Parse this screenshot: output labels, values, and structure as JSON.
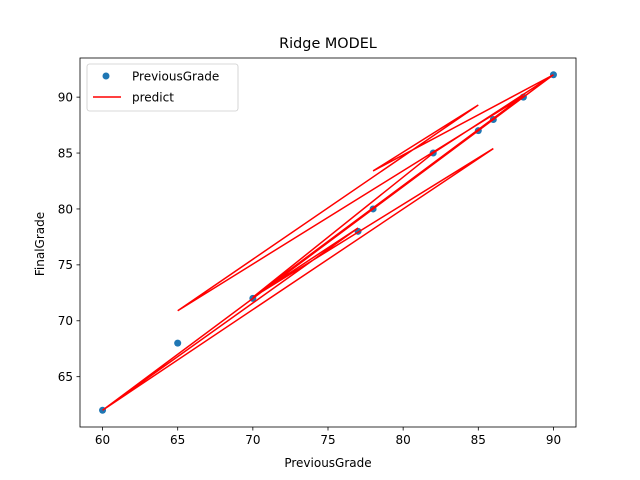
{
  "chart_data": {
    "type": "scatter",
    "title": "Ridge MODEL",
    "xlabel": "PreviousGrade",
    "ylabel": "FinalGrade",
    "xlim": [
      58.5,
      91.5
    ],
    "ylim": [
      60.5,
      93.5
    ],
    "xticks": [
      60,
      65,
      70,
      75,
      80,
      85,
      90
    ],
    "yticks": [
      65,
      70,
      75,
      80,
      85,
      90
    ],
    "legend_position": "upper-left",
    "series": [
      {
        "name": "PreviousGrade",
        "kind": "scatter",
        "color": "#1f77b4",
        "x": [
          60,
          65,
          70,
          77,
          78,
          82,
          85,
          86,
          88,
          90
        ],
        "y": [
          62,
          68,
          72,
          78,
          80,
          85,
          87,
          88,
          90,
          92
        ]
      },
      {
        "name": "predict",
        "kind": "line",
        "color": "#ff0000",
        "x": [
          90,
          78,
          85,
          65,
          88,
          70,
          86,
          60,
          77,
          70,
          82,
          90,
          86,
          60
        ],
        "y": [
          92.0,
          83.4,
          89.3,
          70.9,
          90.1,
          72.1,
          85.4,
          62.0,
          78.3,
          72.1,
          85.0,
          92.0,
          88.0,
          62.0
        ]
      }
    ]
  }
}
